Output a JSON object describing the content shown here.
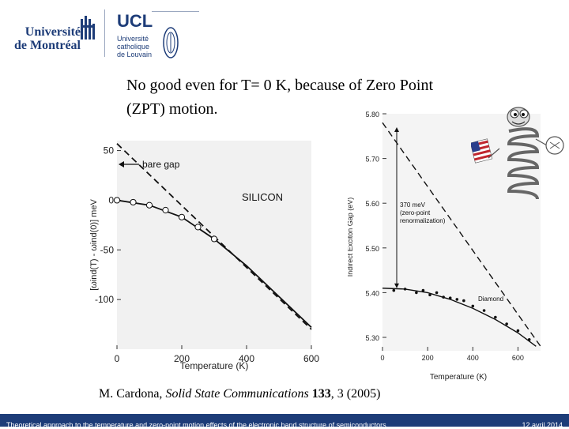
{
  "header": {
    "udem_logo": "Université de Montréal",
    "ucl_logo": "UCL Université catholique de Louvain"
  },
  "slide": {
    "title_line1": "No good even for T= 0 K, because of Zero Point",
    "title_line2": "(ZPT) motion."
  },
  "citation": {
    "author": "M. Cardona, ",
    "journal": "Solid State Communications",
    "volume": " 133",
    "rest": ", 3 (2005)"
  },
  "footer": {
    "text": "Theoretical approach to the temperature and zero-point motion effects of the electronic band structure of semiconductors",
    "date": "12 avril 2014",
    "bar_color": "#1d3c78"
  },
  "chart_data": [
    {
      "type": "line",
      "xlabel": "Temperature (K)",
      "ylabel": "[ωind(T) - ωind(0)] meV",
      "xlim": [
        0,
        600
      ],
      "ylim": [
        -150,
        60
      ],
      "xticks": [
        "0",
        "200",
        "400",
        "600"
      ],
      "yticks": [
        "50",
        "0",
        "-50",
        "-100"
      ],
      "annotations": [
        "bare gap",
        "SILICON"
      ],
      "series": [
        {
          "style": "dashed",
          "x": [
            0,
            600
          ],
          "y": [
            57,
            -130
          ]
        },
        {
          "style": "solid",
          "x": [
            0,
            100,
            200,
            300,
            400,
            500,
            600
          ],
          "y": [
            0,
            -5,
            -17,
            -39,
            -66,
            -97,
            -128
          ]
        },
        {
          "style": "points",
          "x": [
            0,
            50,
            100,
            150,
            200,
            250,
            300
          ],
          "y": [
            0,
            -2,
            -5,
            -10,
            -17,
            -27,
            -39
          ]
        }
      ]
    },
    {
      "type": "scatter",
      "xlabel": "Temperature (K)",
      "ylabel": "Indirect Exciton Gap (eV)",
      "xlim": [
        0,
        700
      ],
      "ylim": [
        5.27,
        5.8
      ],
      "xticks": [
        "0",
        "200",
        "400",
        "600"
      ],
      "yticks": [
        "5.80",
        "5.70",
        "5.60",
        "5.50",
        "5.40",
        "5.30"
      ],
      "annotations": [
        "370 meV (zero-point renormalization)",
        "Diamond"
      ],
      "series": [
        {
          "style": "dashed",
          "x": [
            0,
            700
          ],
          "y": [
            5.78,
            5.28
          ]
        },
        {
          "style": "solid",
          "x": [
            0,
            100,
            200,
            300,
            400,
            500,
            600,
            680
          ],
          "y": [
            5.41,
            5.408,
            5.4,
            5.385,
            5.365,
            5.34,
            5.31,
            5.28
          ]
        },
        {
          "style": "points",
          "x": [
            50,
            100,
            150,
            180,
            210,
            240,
            270,
            300,
            330,
            360,
            400,
            450,
            500,
            550,
            600,
            650
          ],
          "y": [
            5.405,
            5.408,
            5.4,
            5.405,
            5.395,
            5.4,
            5.39,
            5.388,
            5.385,
            5.382,
            5.37,
            5.36,
            5.345,
            5.33,
            5.315,
            5.295
          ]
        }
      ]
    }
  ]
}
